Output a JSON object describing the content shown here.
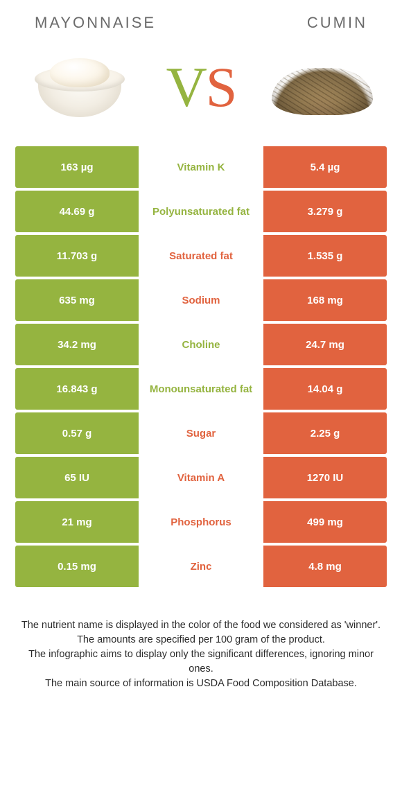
{
  "header": {
    "left_title": "MAYONNAISE",
    "right_title": "CUMIN"
  },
  "vs": {
    "v": "V",
    "s": "S"
  },
  "colors": {
    "green": "#95b440",
    "orange": "#e1633f",
    "header_text": "#6b6b6b",
    "body_text": "#2b2b2b",
    "white": "#ffffff"
  },
  "comparison_table": {
    "left_color": "green",
    "right_color": "orange",
    "rows": [
      {
        "left": "163 µg",
        "label": "Vitamin K",
        "winner": "green",
        "right": "5.4 µg"
      },
      {
        "left": "44.69 g",
        "label": "Polyunsaturated fat",
        "winner": "green",
        "right": "3.279 g"
      },
      {
        "left": "11.703 g",
        "label": "Saturated fat",
        "winner": "orange",
        "right": "1.535 g"
      },
      {
        "left": "635 mg",
        "label": "Sodium",
        "winner": "orange",
        "right": "168 mg"
      },
      {
        "left": "34.2 mg",
        "label": "Choline",
        "winner": "green",
        "right": "24.7 mg"
      },
      {
        "left": "16.843 g",
        "label": "Monounsaturated fat",
        "winner": "green",
        "right": "14.04 g"
      },
      {
        "left": "0.57 g",
        "label": "Sugar",
        "winner": "orange",
        "right": "2.25 g"
      },
      {
        "left": "65 IU",
        "label": "Vitamin A",
        "winner": "orange",
        "right": "1270 IU"
      },
      {
        "left": "21 mg",
        "label": "Phosphorus",
        "winner": "orange",
        "right": "499 mg"
      },
      {
        "left": "0.15 mg",
        "label": "Zinc",
        "winner": "orange",
        "right": "4.8 mg"
      }
    ]
  },
  "footnote": {
    "line1": "The nutrient name is displayed in the color of the food we considered as 'winner'.",
    "line2": "The amounts are specified per 100 gram of the product.",
    "line3": "The infographic aims to display only the significant differences, ignoring minor ones.",
    "line4": "The main source of information is USDA Food Composition Database."
  }
}
